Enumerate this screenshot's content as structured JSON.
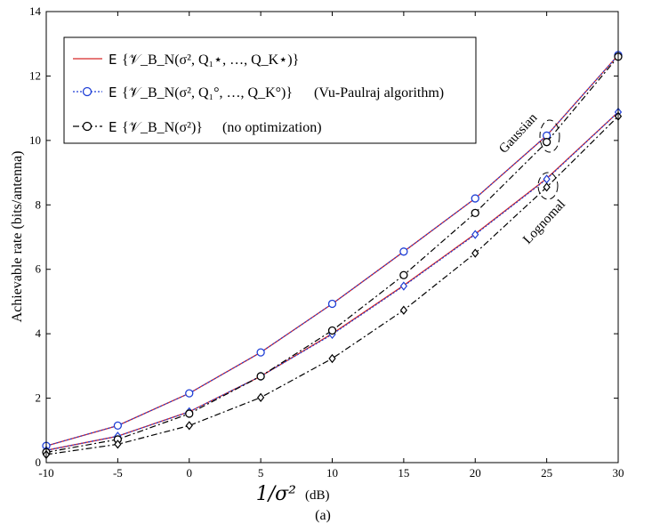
{
  "chart_data": {
    "type": "line",
    "title": "",
    "xlabel": "1/σ²",
    "xunit": "(dB)",
    "ylabel": "Achievable rate (bits/antenna)",
    "caption": "(a)",
    "x": [
      -10,
      -5,
      0,
      5,
      10,
      15,
      20,
      25,
      30
    ],
    "xlim": [
      -10,
      30
    ],
    "ylim": [
      0,
      14
    ],
    "xticks": [
      "-10",
      "-5",
      "0",
      "5",
      "10",
      "15",
      "20",
      "25",
      "30"
    ],
    "yticks": [
      "0",
      "2",
      "4",
      "6",
      "8",
      "10",
      "12",
      "14"
    ],
    "grid": false,
    "legend_position": "top-left",
    "legend": [
      {
        "prefix": "E",
        "expr": "{𝒱_B_N(σ², Q₁⋆, …, Q_K⋆)}",
        "suffix": ""
      },
      {
        "prefix": "E",
        "expr": "{𝒱_B_N(σ², Q₁°, …, Q_K°)}",
        "suffix": "(Vu-Paulraj algorithm)"
      },
      {
        "prefix": "E",
        "expr": "{𝒱_B_N(σ²)}",
        "suffix": "(no optimization)"
      }
    ],
    "annotations": [
      "Gaussian",
      "Lognomal"
    ],
    "series": [
      {
        "name": "Optimal (Gaussian)",
        "style": "solid",
        "marker": "none",
        "color": "#d62728",
        "values": [
          0.52,
          1.15,
          2.15,
          3.42,
          4.93,
          6.55,
          8.2,
          10.15,
          12.65
        ]
      },
      {
        "name": "Optimal (Lognormal)",
        "style": "solid",
        "marker": "none",
        "color": "#d62728",
        "values": [
          0.38,
          0.82,
          1.58,
          2.68,
          4.0,
          5.5,
          7.1,
          8.82,
          10.88
        ]
      },
      {
        "name": "Vu-Paulraj (Gaussian)",
        "style": "dotted",
        "marker": "circle",
        "color": "#1f3fd6",
        "values": [
          0.52,
          1.15,
          2.15,
          3.42,
          4.93,
          6.55,
          8.2,
          10.15,
          12.65
        ]
      },
      {
        "name": "Vu-Paulraj (Lognormal)",
        "style": "dotted",
        "marker": "diamond",
        "color": "#1f3fd6",
        "values": [
          0.38,
          0.82,
          1.58,
          2.68,
          3.98,
          5.48,
          7.08,
          8.8,
          10.88
        ]
      },
      {
        "name": "No optimization (Gaussian)",
        "style": "dashdot",
        "marker": "circle",
        "color": "#000000",
        "values": [
          0.32,
          0.72,
          1.52,
          2.68,
          4.1,
          5.82,
          7.75,
          9.95,
          12.6
        ]
      },
      {
        "name": "No optimization (Lognormal)",
        "style": "dashdot",
        "marker": "diamond",
        "color": "#000000",
        "values": [
          0.25,
          0.57,
          1.15,
          2.02,
          3.23,
          4.73,
          6.5,
          8.55,
          10.75
        ]
      }
    ]
  }
}
